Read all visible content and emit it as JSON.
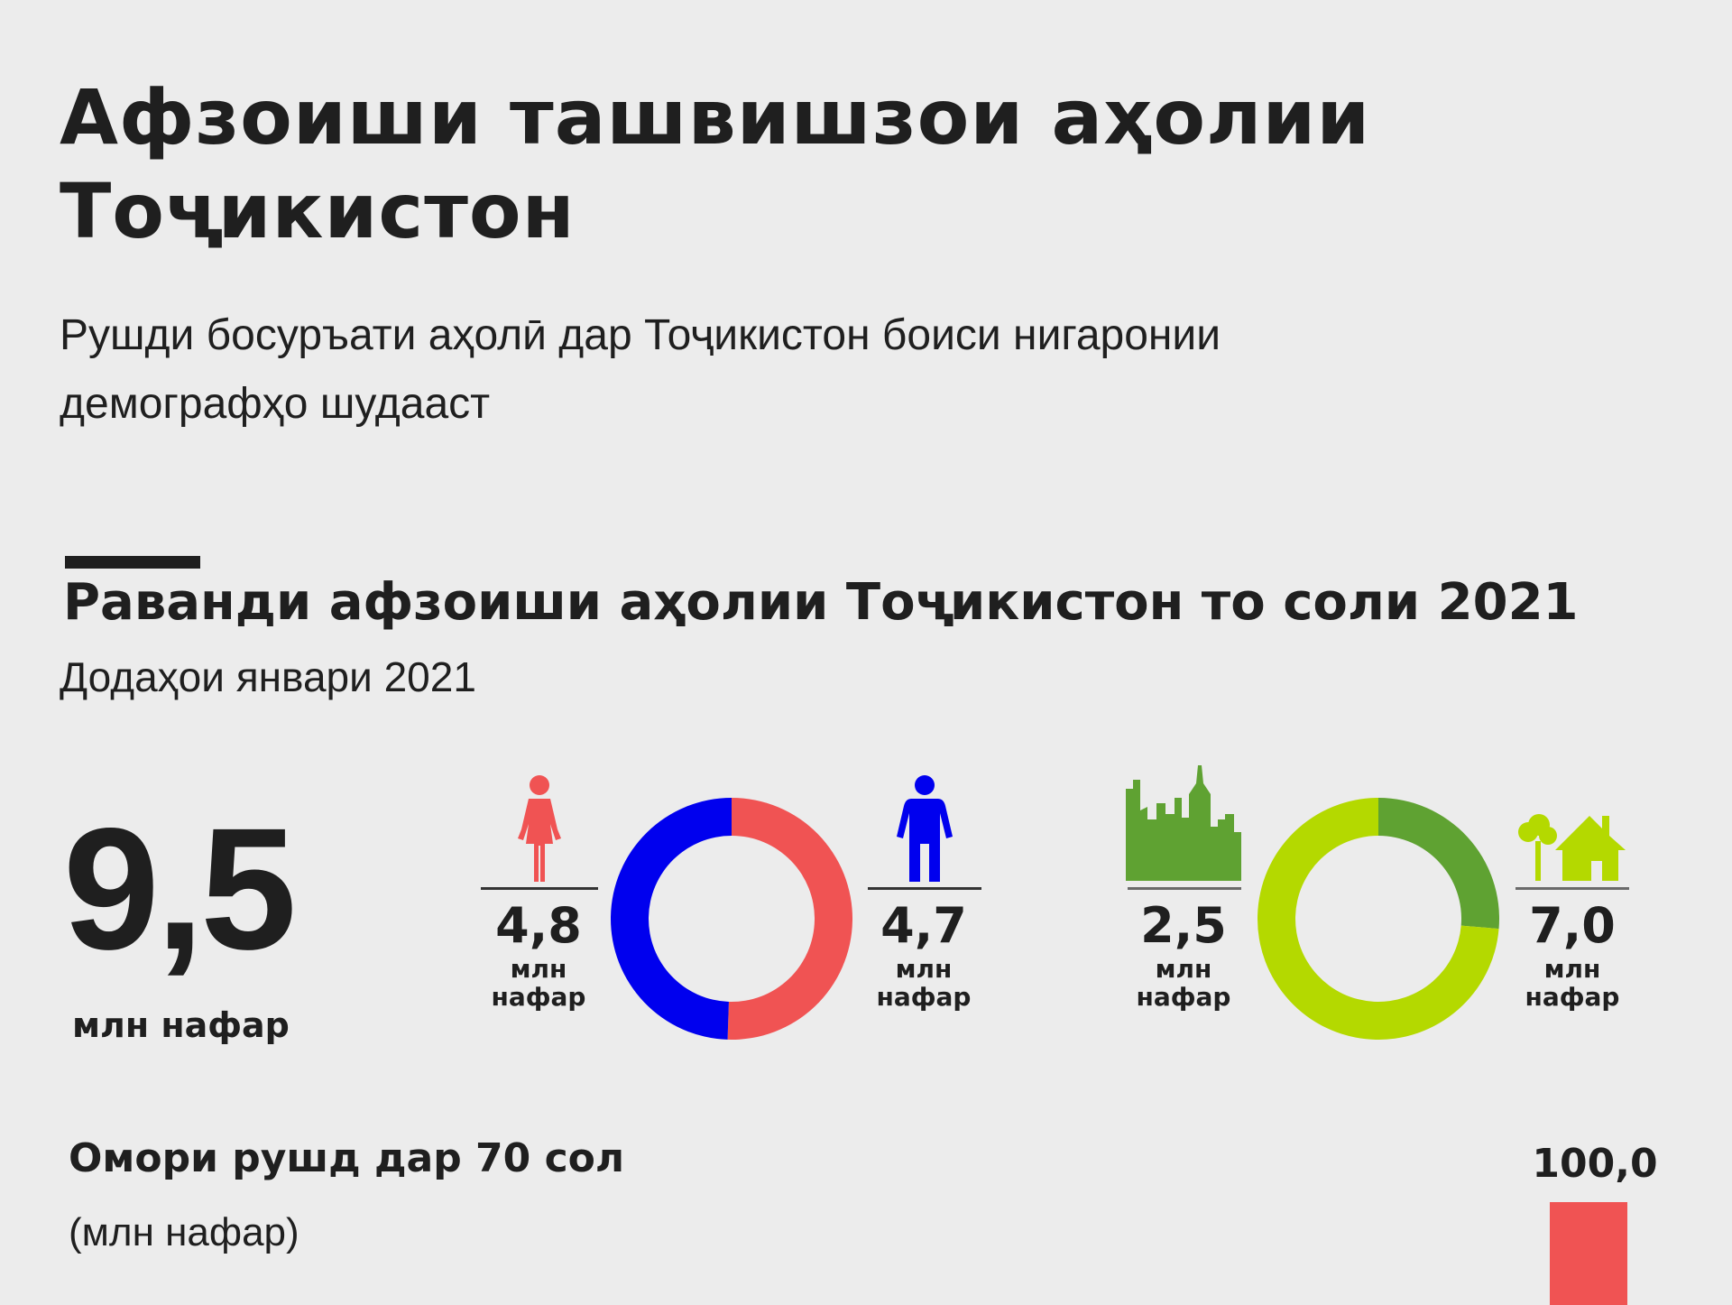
{
  "header": {
    "title": "Афзоиши ташвишзои аҳолии Тоҷикистон",
    "subtitle": "Рушди босуръати аҳолӣ дар Тоҷикистон боиси нигаронии демографҳо шудааст"
  },
  "section": {
    "title": "Раванди афзоиши аҳолии Тоҷикистон то соли 2021",
    "subtitle": "Додаҳои январи 2021"
  },
  "total": {
    "value": "9,5",
    "unit": "млн нафар"
  },
  "stats": {
    "women": {
      "value": "4,8",
      "unit_line1": "млн",
      "unit_line2": "нафар"
    },
    "men": {
      "value": "4,7",
      "unit_line1": "млн",
      "unit_line2": "нафар"
    },
    "urban": {
      "value": "2,5",
      "unit_line1": "млн",
      "unit_line2": "нафар"
    },
    "rural": {
      "value": "7,0",
      "unit_line1": "млн",
      "unit_line2": "нафар"
    }
  },
  "growth": {
    "title": "Омори рушд дар 70 сол",
    "unit": "(млн нафар)",
    "value_label": "100,0",
    "bar_color": "#f05353"
  },
  "chart_data": [
    {
      "type": "pie",
      "donut": true,
      "labels": [
        "Women",
        "Men"
      ],
      "values": [
        4.8,
        4.7
      ],
      "colors": [
        "#f05353",
        "#0000ee"
      ],
      "unit": "млн нафар"
    },
    {
      "type": "pie",
      "donut": true,
      "labels": [
        "Urban",
        "Rural"
      ],
      "values": [
        2.5,
        7.0
      ],
      "colors": [
        "#5fa232",
        "#b4d900"
      ],
      "unit": "млн нафар"
    }
  ],
  "icons": {
    "women": "woman-icon",
    "men": "man-icon",
    "urban": "city-skyline-icon",
    "rural": "house-trees-icon"
  },
  "colors": {
    "background": "#ececec",
    "women": "#f05353",
    "men": "#0000ee",
    "urban": "#5fa232",
    "rural": "#b4d900",
    "text": "#1f1f1f"
  }
}
